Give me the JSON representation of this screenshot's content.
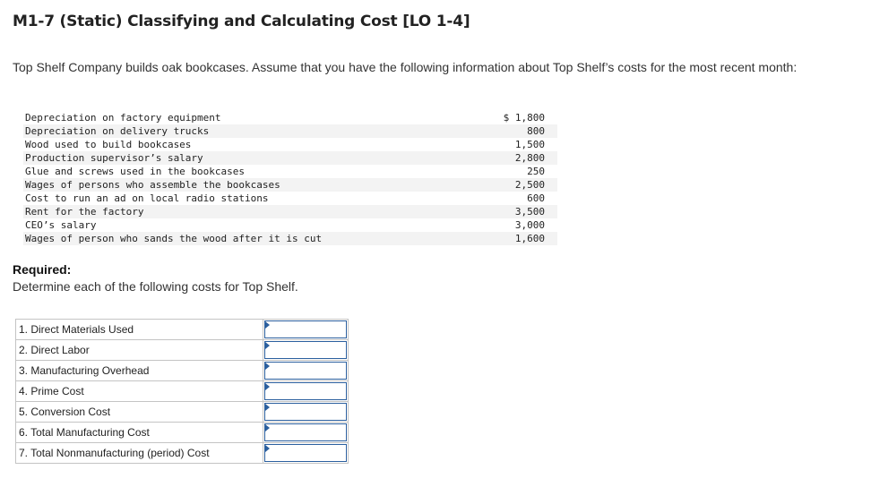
{
  "title": "M1-7 (Static) Classifying and Calculating Cost [LO 1-4]",
  "intro": "Top Shelf Company builds oak bookcases. Assume that you have the following information about Top Shelf’s costs for the most recent month:",
  "costs": [
    {
      "label": "Depreciation on factory equipment",
      "amount": "$ 1,800"
    },
    {
      "label": "Depreciation on delivery trucks",
      "amount": "800"
    },
    {
      "label": "Wood used to build bookcases",
      "amount": "1,500"
    },
    {
      "label": "Production supervisor’s salary",
      "amount": "2,800"
    },
    {
      "label": "Glue and screws used in the bookcases",
      "amount": "250"
    },
    {
      "label": "Wages of persons who assemble the bookcases",
      "amount": "2,500"
    },
    {
      "label": "Cost to run an ad on local radio stations",
      "amount": "600"
    },
    {
      "label": "Rent for the factory",
      "amount": "3,500"
    },
    {
      "label": "CEO’s salary",
      "amount": "3,000"
    },
    {
      "label": "Wages of person who sands the wood after it is cut",
      "amount": "1,600"
    }
  ],
  "required_label": "Required:",
  "instruction": "Determine each of the following costs for Top Shelf.",
  "answers": [
    {
      "label": "1. Direct Materials Used",
      "value": ""
    },
    {
      "label": "2. Direct Labor",
      "value": ""
    },
    {
      "label": "3. Manufacturing Overhead",
      "value": ""
    },
    {
      "label": "4. Prime Cost",
      "value": ""
    },
    {
      "label": "5. Conversion Cost",
      "value": ""
    },
    {
      "label": "6. Total Manufacturing Cost",
      "value": ""
    },
    {
      "label": "7. Total Nonmanufacturing (period) Cost",
      "value": ""
    }
  ]
}
